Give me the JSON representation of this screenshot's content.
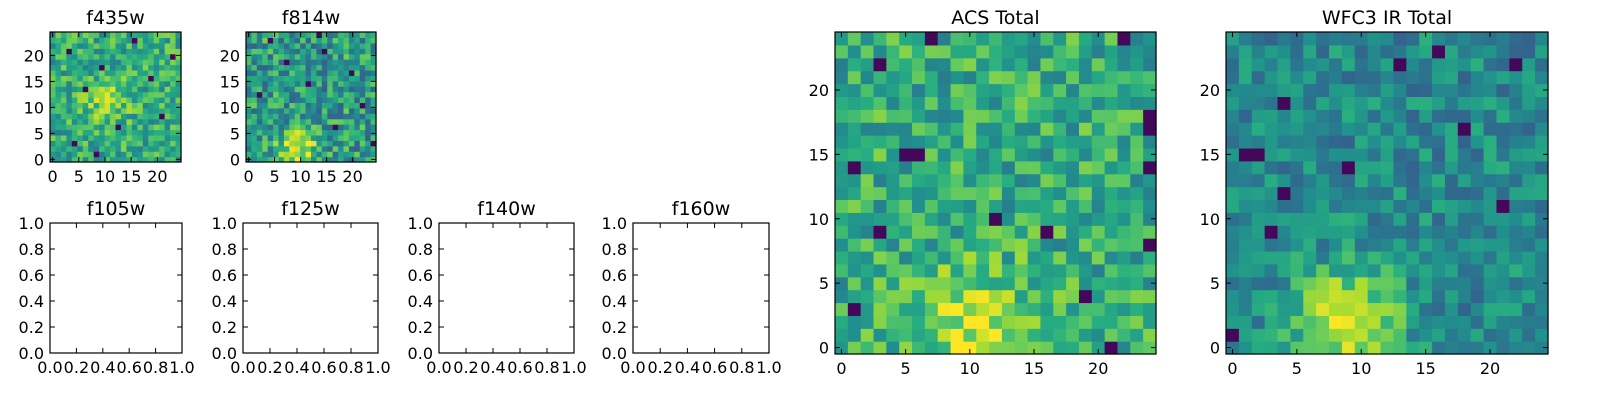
{
  "figure": {
    "background": "#ffffff"
  },
  "chart_data": [
    {
      "type": "heatmap",
      "title": "f435w",
      "colormap": "viridis",
      "grid_size": [
        24,
        24
      ],
      "xlim": [
        -0.5,
        24.5
      ],
      "ylim": [
        -0.5,
        24.5
      ],
      "x_ticks": [
        "0",
        "5",
        "10",
        "15",
        "20"
      ],
      "y_ticks": [
        "0",
        "5",
        "10",
        "15",
        "20"
      ],
      "seed": 11,
      "noise_level": 0.62,
      "noise_amp": 0.2,
      "blob": {
        "x": 10,
        "y": 11,
        "sigma": 3,
        "amp": 0.2
      },
      "dark_pixels": [
        [
          3,
          20
        ],
        [
          9,
          17
        ],
        [
          15,
          22
        ],
        [
          6,
          13
        ],
        [
          20,
          8
        ],
        [
          12,
          6
        ],
        [
          4,
          3
        ],
        [
          18,
          15
        ],
        [
          22,
          19
        ],
        [
          8,
          1
        ]
      ]
    },
    {
      "type": "heatmap",
      "title": "f814w",
      "colormap": "viridis",
      "grid_size": [
        24,
        24
      ],
      "xlim": [
        -0.5,
        24.5
      ],
      "ylim": [
        -0.5,
        24.5
      ],
      "x_ticks": [
        "0",
        "5",
        "10",
        "15",
        "20"
      ],
      "y_ticks": [
        "0",
        "5",
        "10",
        "15",
        "20"
      ],
      "seed": 23,
      "noise_level": 0.55,
      "noise_amp": 0.24,
      "blob": {
        "x": 9,
        "y": 2,
        "sigma": 2.5,
        "amp": 0.4
      },
      "dark_pixels": [
        [
          4,
          22
        ],
        [
          14,
          20
        ],
        [
          19,
          16
        ],
        [
          2,
          12
        ],
        [
          11,
          14
        ],
        [
          21,
          10
        ],
        [
          16,
          6
        ],
        [
          7,
          18
        ],
        [
          23,
          3
        ],
        [
          13,
          23
        ]
      ]
    },
    {
      "type": "empty",
      "title": "f105w",
      "xlim": [
        0,
        1
      ],
      "ylim": [
        0,
        1
      ],
      "x_ticks": [
        "0.0",
        "0.2",
        "0.4",
        "0.6",
        "0.8",
        "1.0"
      ],
      "y_ticks": [
        "0.0",
        "0.2",
        "0.4",
        "0.6",
        "0.8",
        "1.0"
      ]
    },
    {
      "type": "empty",
      "title": "f125w",
      "xlim": [
        0,
        1
      ],
      "ylim": [
        0,
        1
      ],
      "x_ticks": [
        "0.0",
        "0.2",
        "0.4",
        "0.6",
        "0.8",
        "1.0"
      ],
      "y_ticks": [
        "0.0",
        "0.2",
        "0.4",
        "0.6",
        "0.8",
        "1.0"
      ]
    },
    {
      "type": "empty",
      "title": "f140w",
      "xlim": [
        0,
        1
      ],
      "ylim": [
        0,
        1
      ],
      "x_ticks": [
        "0.0",
        "0.2",
        "0.4",
        "0.6",
        "0.8",
        "1.0"
      ],
      "y_ticks": [
        "0.0",
        "0.2",
        "0.4",
        "0.6",
        "0.8",
        "1.0"
      ]
    },
    {
      "type": "empty",
      "title": "f160w",
      "xlim": [
        0,
        1
      ],
      "ylim": [
        0,
        1
      ],
      "x_ticks": [
        "0.0",
        "0.2",
        "0.4",
        "0.6",
        "0.8",
        "1.0"
      ],
      "y_ticks": [
        "0.0",
        "0.2",
        "0.4",
        "0.6",
        "0.8",
        "1.0"
      ]
    },
    {
      "type": "heatmap",
      "title": "ACS Total",
      "colormap": "viridis",
      "grid_size": [
        25,
        25
      ],
      "xlim": [
        -0.5,
        24.5
      ],
      "ylim": [
        -0.5,
        24.5
      ],
      "x_ticks": [
        "0",
        "5",
        "10",
        "15",
        "20"
      ],
      "y_ticks": [
        "0",
        "5",
        "10",
        "15",
        "20"
      ],
      "seed": 7,
      "noise_level": 0.62,
      "noise_amp": 0.2,
      "blob": {
        "x": 10,
        "y": 2,
        "sigma": 3.2,
        "amp": 0.3
      },
      "dark_pixels": [
        [
          7,
          24
        ],
        [
          3,
          22
        ],
        [
          6,
          15
        ],
        [
          5,
          15
        ],
        [
          1,
          14
        ],
        [
          24,
          14
        ],
        [
          24,
          17
        ],
        [
          24,
          18
        ],
        [
          12,
          10
        ],
        [
          3,
          9
        ],
        [
          16,
          9
        ],
        [
          24,
          8
        ],
        [
          19,
          4
        ],
        [
          21,
          0
        ],
        [
          1,
          3
        ],
        [
          22,
          24
        ]
      ]
    },
    {
      "type": "heatmap",
      "title": "WFC3 IR Total",
      "colormap": "viridis",
      "grid_size": [
        25,
        25
      ],
      "xlim": [
        -0.5,
        24.5
      ],
      "ylim": [
        -0.5,
        24.5
      ],
      "x_ticks": [
        "0",
        "5",
        "10",
        "15",
        "20"
      ],
      "y_ticks": [
        "0",
        "5",
        "10",
        "15",
        "20"
      ],
      "seed": 3,
      "noise_level": 0.48,
      "noise_amp": 0.16,
      "blob": {
        "x": 9,
        "y": 2,
        "sigma": 2.8,
        "amp": 0.52
      },
      "dark_pixels": [
        [
          16,
          23
        ],
        [
          4,
          19
        ],
        [
          1,
          15
        ],
        [
          2,
          15
        ],
        [
          18,
          17
        ],
        [
          9,
          14
        ],
        [
          3,
          9
        ],
        [
          4,
          12
        ],
        [
          21,
          11
        ],
        [
          0,
          1
        ],
        [
          22,
          22
        ],
        [
          13,
          22
        ]
      ]
    }
  ]
}
